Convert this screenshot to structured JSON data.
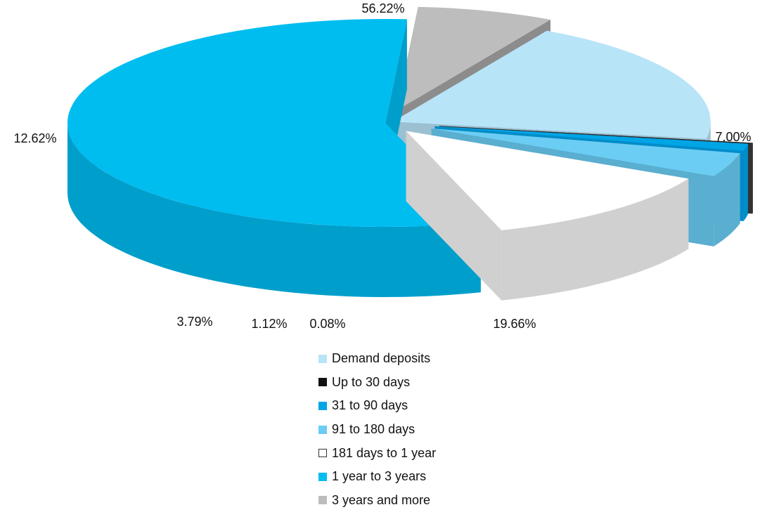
{
  "chart_data": {
    "type": "pie",
    "style": "3d-exploded",
    "title": "",
    "legend_position": "bottom-center",
    "slices": [
      {
        "label": "Demand deposits",
        "value": 19.66,
        "value_label": "19.66%",
        "color": "#b8e4f8",
        "side": "#9bc0d2"
      },
      {
        "label": "Up to 30 days",
        "value": 0.08,
        "value_label": "0.08%",
        "color": "#111111",
        "side": "#333333"
      },
      {
        "label": "31 to 90 days",
        "value": 1.12,
        "value_label": "1.12%",
        "color": "#00a5e6",
        "side": "#008cc8"
      },
      {
        "label": "91 to 180 days",
        "value": 3.79,
        "value_label": "3.79%",
        "color": "#6ccdf4",
        "side": "#5aaecf"
      },
      {
        "label": "181 days to 1 year",
        "value": 12.62,
        "value_label": "12.62%",
        "color": "#ffffff",
        "side": "#d0d0d0"
      },
      {
        "label": "1 year to 3 years",
        "value": 56.22,
        "value_label": "56.22%",
        "color": "#00bdf0",
        "side": "#009fcb"
      },
      {
        "label": "3 years and more",
        "value": 7.0,
        "value_label": "7.00%",
        "color": "#bdbdbd",
        "side": "#8c8c8c"
      }
    ]
  }
}
